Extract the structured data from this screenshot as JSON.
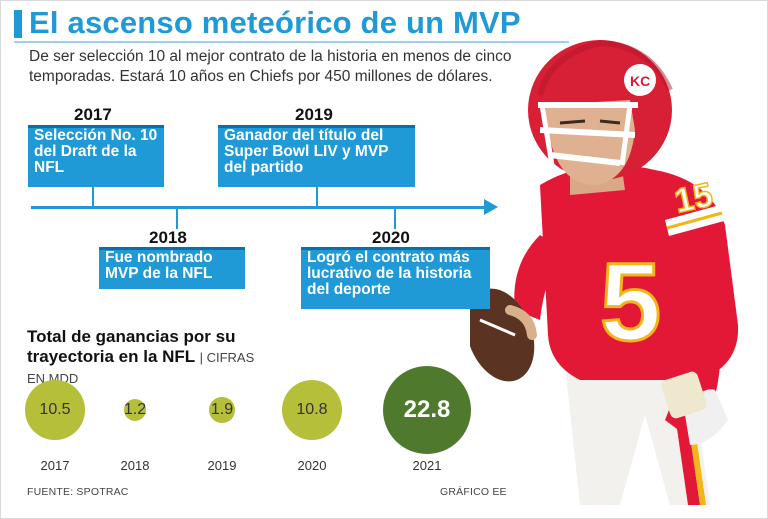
{
  "header": {
    "title": "El ascenso meteórico de un MVP",
    "subtitle": "De ser selección 10 al mejor contrato de la historia en menos de cinco temporadas. Estará 10 años en Chiefs por 450 millones de dólares."
  },
  "timeline": [
    {
      "year": "2017",
      "text": "Selección No. 10 del Draft de la NFL"
    },
    {
      "year": "2018",
      "text": "Fue nombrado MVP de la NFL"
    },
    {
      "year": "2019",
      "text": "Ganador del título del Super Bowl LIV y MVP del partido"
    },
    {
      "year": "2020",
      "text": "Logró el contrato más lucrativo de la historia del deporte"
    }
  ],
  "earnings": {
    "title": "Total de ganancias por su trayectoria en la NFL",
    "unit": "| CIFRAS EN MDD"
  },
  "chart_data": {
    "type": "bubble",
    "title": "Total de ganancias por su trayectoria en la NFL",
    "unit": "CIFRAS EN MDD",
    "categories": [
      "2017",
      "2018",
      "2019",
      "2020",
      "2021"
    ],
    "values": [
      10.5,
      1.2,
      1.9,
      10.8,
      22.8
    ],
    "labels": [
      "10.5",
      "1.2",
      "1.9",
      "10.8",
      "22.8"
    ],
    "colors": [
      "#b5bf3a",
      "#b5bf3a",
      "#b5bf3a",
      "#b5bf3a",
      "#4f7a2e"
    ]
  },
  "footer": {
    "source": "FUENTE: SPOTRAC",
    "credit": "GRÁFICO EE"
  },
  "colors": {
    "accent": "#1f9ad6",
    "jersey": "#e31837"
  }
}
